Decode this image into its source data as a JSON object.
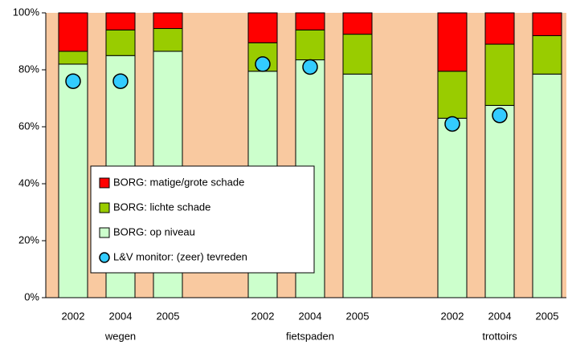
{
  "chart_data": {
    "type": "stacked-bar",
    "groups": [
      {
        "name": "wegen",
        "categories": [
          "2002",
          "2004",
          "2005"
        ]
      },
      {
        "name": "fietspaden",
        "categories": [
          "2002",
          "2004",
          "2005"
        ]
      },
      {
        "name": "trottoirs",
        "categories": [
          "2002",
          "2004",
          "2005"
        ]
      }
    ],
    "series": [
      {
        "name": "BORG: op niveau",
        "color": "#ccffcc",
        "values": [
          82,
          85,
          86.5,
          79.5,
          83.5,
          78.5,
          63,
          67.5,
          78.5
        ]
      },
      {
        "name": "BORG: lichte schade",
        "color": "#99cc00",
        "values": [
          4.5,
          9,
          8,
          10,
          10.5,
          14,
          16.5,
          21.5,
          13.5
        ]
      },
      {
        "name": "BORG: matige/grote schade",
        "color": "#ff0000",
        "values": [
          13.5,
          6,
          5.5,
          10.5,
          6,
          7.5,
          20.5,
          11,
          8
        ]
      }
    ],
    "markers": {
      "name": "L&V monitor: (zeer) tevreden",
      "color": "#33ccff",
      "values": [
        76,
        76,
        null,
        82,
        81,
        null,
        61,
        64,
        null
      ]
    },
    "ylim": [
      0,
      100
    ],
    "yticks": [
      {
        "value": 0,
        "label": "0%"
      },
      {
        "value": 20,
        "label": "20%"
      },
      {
        "value": 40,
        "label": "40%"
      },
      {
        "value": 60,
        "label": "60%"
      },
      {
        "value": 80,
        "label": "80%"
      },
      {
        "value": 100,
        "label": "100%"
      }
    ],
    "background": "#f9c9a0"
  }
}
